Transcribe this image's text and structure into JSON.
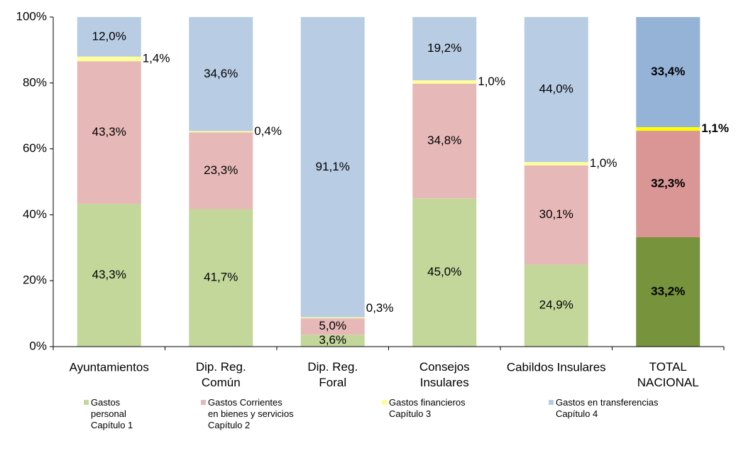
{
  "chart_data": {
    "type": "stacked_bar",
    "categories": [
      "Ayuntamientos",
      "Dip. Reg.\nComún",
      "Dip. Reg.\nForal",
      "Consejos\nInsulares",
      "Cabildos Insulares",
      "TOTAL\nNACIONAL"
    ],
    "ylim": [
      0,
      100
    ],
    "yticks": [
      {
        "value": 0,
        "label": "0%"
      },
      {
        "value": 20,
        "label": "20%"
      },
      {
        "value": 40,
        "label": "40%"
      },
      {
        "value": 60,
        "label": "60%"
      },
      {
        "value": 80,
        "label": "80%"
      },
      {
        "value": 100,
        "label": "100%"
      }
    ],
    "legend": "bottom",
    "series": [
      {
        "name": "Gastos\npersonal\nCapítulo 1",
        "color": "#c4d79b",
        "colors": [
          "#c4d79b",
          "#c4d79b",
          "#c4d79b",
          "#c4d79b",
          "#c4d79b",
          "#77933c"
        ],
        "values": [
          43.3,
          41.7,
          3.6,
          45.0,
          24.9,
          33.2
        ],
        "value_labels": [
          "43,3%",
          "41,7%",
          "3,6%",
          "45,0%",
          "24,9%",
          "33,2%"
        ]
      },
      {
        "name": "Gastos Corrientes\nen bienes y servicios\nCapítulo 2",
        "color": "#e6b9b8",
        "colors": [
          "#e6b9b8",
          "#e6b9b8",
          "#e6b9b8",
          "#e6b9b8",
          "#e6b9b8",
          "#d99694"
        ],
        "values": [
          43.3,
          23.3,
          5.0,
          34.8,
          30.1,
          32.3
        ],
        "value_labels": [
          "43,3%",
          "23,3%",
          "5,0%",
          "34,8%",
          "30,1%",
          "32,3%"
        ]
      },
      {
        "name": "Gastos financieros\nCapítulo 3",
        "color": "#ffff99",
        "colors": [
          "#ffff99",
          "#ffff99",
          "#ffff99",
          "#ffff99",
          "#ffff99",
          "#ffff00"
        ],
        "values": [
          1.4,
          0.4,
          0.3,
          1.0,
          1.0,
          1.1
        ],
        "value_labels": [
          "1,4%",
          "0,4%",
          "0,3%",
          "1,0%",
          "1,0%",
          "1,1%"
        ]
      },
      {
        "name": "Gastos en transferencias\nCapítulo 4",
        "color": "#b8cce4",
        "colors": [
          "#b8cce4",
          "#b8cce4",
          "#b8cce4",
          "#b8cce4",
          "#b8cce4",
          "#95b3d7"
        ],
        "values": [
          12.0,
          34.6,
          91.1,
          19.2,
          44.0,
          33.4
        ],
        "value_labels": [
          "12,0%",
          "34,6%",
          "91,1%",
          "19,2%",
          "44,0%",
          "33,4%"
        ]
      }
    ]
  }
}
